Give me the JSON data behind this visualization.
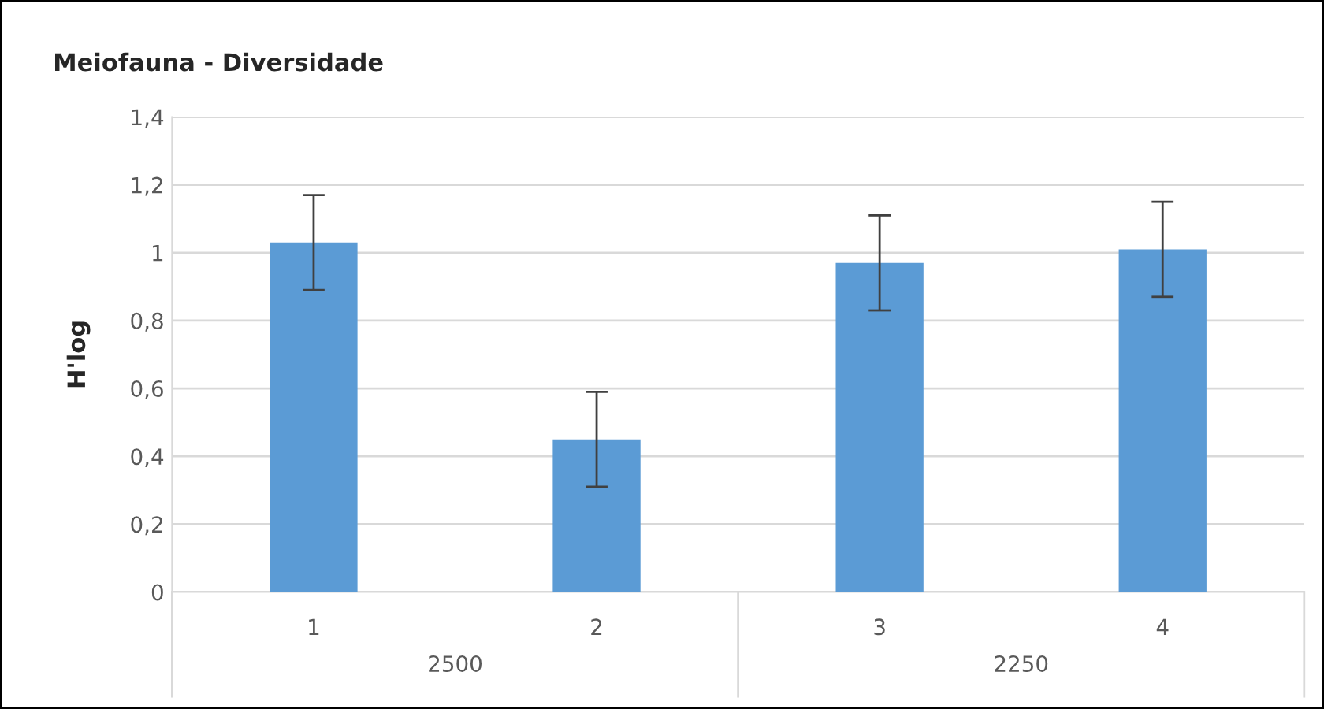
{
  "chart_data": {
    "type": "bar",
    "title": "Meiofauna - Diversidade",
    "ylabel": "H'log",
    "categories": [
      "1",
      "2",
      "3",
      "4"
    ],
    "values": [
      1.03,
      0.45,
      0.97,
      1.01
    ],
    "errors": [
      0.14,
      0.14,
      0.14,
      0.14
    ],
    "color": "#5b9bd5",
    "ylim": [
      0,
      1.4
    ],
    "yticks": [
      0,
      {
        "value": 0.2,
        "label": "0,2"
      },
      {
        "value": 0.4,
        "label": "0,4"
      },
      {
        "value": 0.6,
        "label": "0,6"
      },
      {
        "value": 0.8,
        "label": "0,8"
      },
      1,
      {
        "value": 1.2,
        "label": "1,2"
      },
      {
        "value": 1.4,
        "label": "1,4"
      }
    ],
    "grid": "y",
    "annotations": [
      "2500",
      "2250"
    ]
  }
}
